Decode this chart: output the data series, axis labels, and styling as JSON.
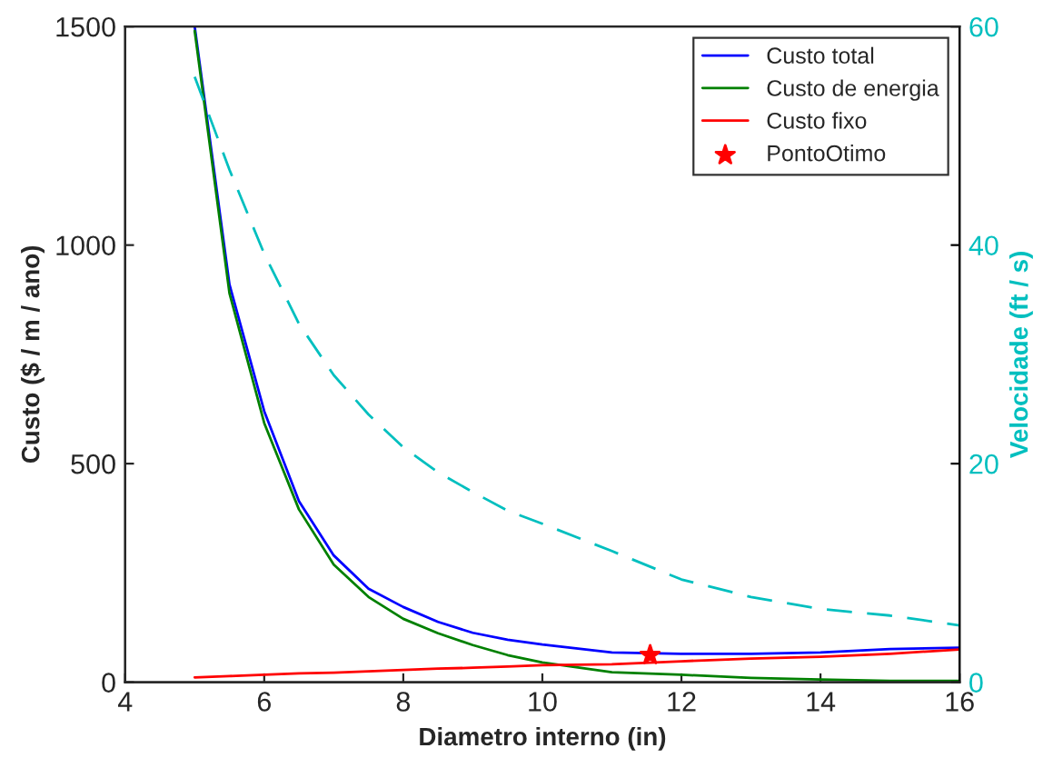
{
  "chart_data": {
    "type": "line",
    "xlabel": "Diametro interno (in)",
    "ylabel": "Custo ($ / m / ano)",
    "y2label": "Velocidade (ft / s)",
    "x": [
      5,
      5.5,
      6,
      6.5,
      7,
      7.5,
      8,
      8.5,
      9,
      9.5,
      10,
      11,
      12,
      13,
      14,
      15,
      16
    ],
    "series": [
      {
        "name": "Custo total",
        "color": "#0000ff",
        "values": [
          1500,
          910,
          620,
          414,
          290,
          214,
          172,
          138,
          113,
          97,
          86,
          68,
          65,
          65,
          68,
          76,
          79
        ]
      },
      {
        "name": "Custo de energia",
        "color": "#008000",
        "values": [
          1490,
          890,
          593,
          395,
          269,
          195,
          145,
          112,
          85,
          62,
          45,
          23,
          17,
          10,
          6,
          3,
          3
        ]
      },
      {
        "name": "Custo fixo",
        "color": "#ff0000",
        "values": [
          11,
          14,
          17,
          20,
          22,
          25,
          28,
          31,
          33,
          36,
          39,
          41,
          48,
          54,
          58,
          65,
          75
        ]
      },
      {
        "name": "PontoOtimo",
        "type": "scatter",
        "marker": "star",
        "color": "#ff0000",
        "x": [
          11.55
        ],
        "values": [
          62
        ]
      },
      {
        "color": "#00bfbf",
        "axis": "y2",
        "line_style": "dashed",
        "values": [
          55.4,
          46.9,
          39.2,
          32.8,
          28.1,
          24.5,
          21.5,
          19.2,
          17.4,
          15.7,
          14.5,
          12.0,
          9.4,
          7.8,
          6.7,
          6.1,
          5.2
        ]
      }
    ],
    "xlim": [
      4,
      16
    ],
    "xticks": [
      4,
      6,
      8,
      10,
      12,
      14,
      16
    ],
    "ylim": [
      0,
      1500
    ],
    "yticks": [
      0,
      500,
      1000,
      1500
    ],
    "y2lim": [
      0,
      60
    ],
    "y2ticks": [
      0,
      20,
      40,
      60
    ],
    "legend": "top right",
    "grid": false
  }
}
